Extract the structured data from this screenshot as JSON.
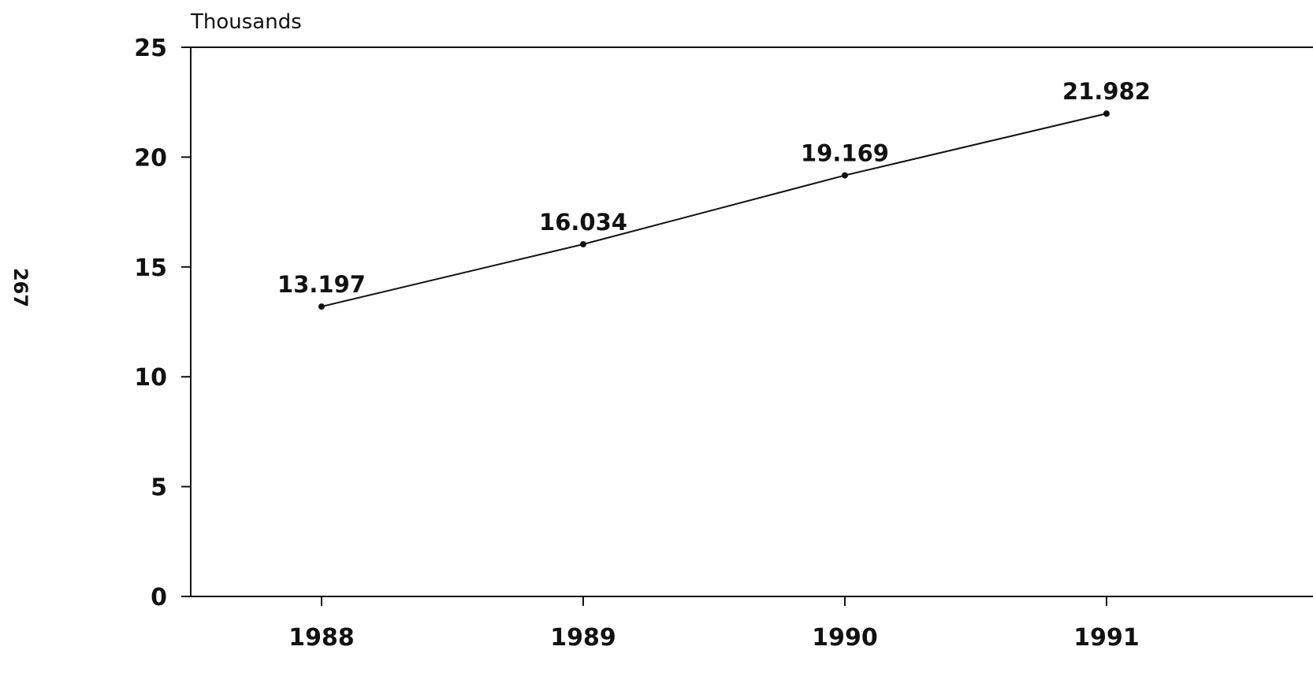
{
  "page_number": "267",
  "chart_data": {
    "type": "line",
    "ylabel": "Thousands",
    "categories": [
      "1988",
      "1989",
      "1990",
      "1991"
    ],
    "y_ticks": [
      "0",
      "5",
      "10",
      "15",
      "20",
      "25"
    ],
    "ylim": [
      0,
      25
    ],
    "grid": false,
    "series": [
      {
        "values": [
          13.197,
          16.034,
          19.169,
          21.982
        ],
        "labels": [
          "13.197",
          "16.034",
          "19.169",
          "21.982"
        ]
      }
    ]
  }
}
